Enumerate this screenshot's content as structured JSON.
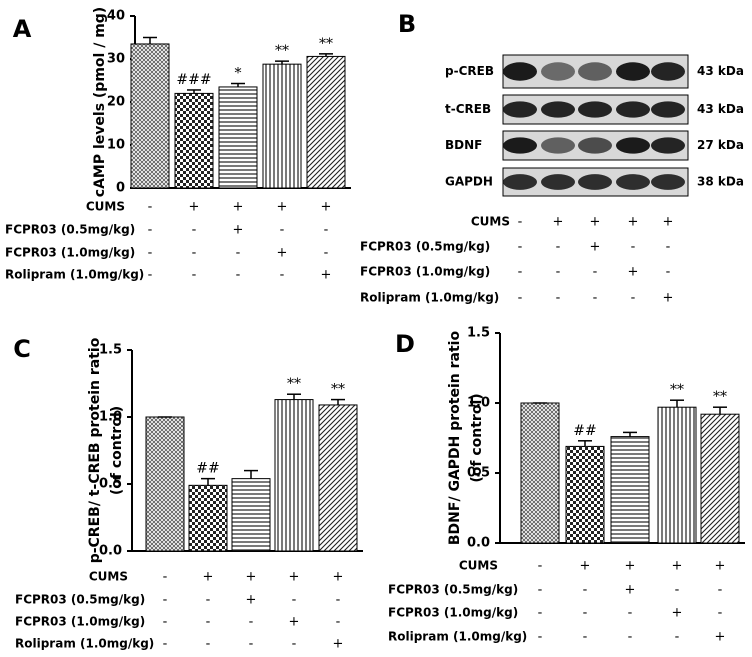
{
  "chart_data": [
    {
      "type": "bar",
      "panel": "A",
      "y_label": [
        "cAMP levels (pmol / mg)"
      ],
      "values": [
        33.5,
        22.0,
        23.5,
        28.8,
        30.6
      ],
      "errors": [
        1.5,
        0.8,
        0.8,
        0.7,
        0.6
      ],
      "annotations": [
        null,
        "###",
        "*",
        "**",
        "**"
      ],
      "ylim": [
        0,
        40
      ],
      "yticks": [
        0,
        10,
        20,
        30,
        40
      ],
      "treatments": [
        {
          "label": "CUMS",
          "signs": [
            "-",
            "+",
            "+",
            "+",
            "+"
          ]
        },
        {
          "label": "FCPR03 (0.5mg/kg)",
          "signs": [
            "-",
            "-",
            "+",
            "-",
            "-"
          ]
        },
        {
          "label": "FCPR03 (1.0mg/kg)",
          "signs": [
            "-",
            "-",
            "-",
            "+",
            "-"
          ]
        },
        {
          "label": "Rolipram (1.0mg/kg)",
          "signs": [
            "-",
            "-",
            "-",
            "-",
            "+"
          ]
        }
      ]
    },
    {
      "type": "blot",
      "panel": "B",
      "rows": [
        {
          "label": "p-CREB",
          "size": "43 kDa"
        },
        {
          "label": "t-CREB",
          "size": "43 kDa"
        },
        {
          "label": "BDNF",
          "size": "27 kDa"
        },
        {
          "label": "GAPDH",
          "size": "38 kDa"
        }
      ],
      "treatments": [
        {
          "label": "CUMS",
          "signs": [
            "-",
            "+",
            "+",
            "+",
            "+"
          ]
        },
        {
          "label": "FCPR03 (0.5mg/kg)",
          "signs": [
            "-",
            "-",
            "+",
            "-",
            "-"
          ]
        },
        {
          "label": "FCPR03 (1.0mg/kg)",
          "signs": [
            "-",
            "-",
            "-",
            "+",
            "-"
          ]
        },
        {
          "label": "Rolipram (1.0mg/kg)",
          "signs": [
            "-",
            "-",
            "-",
            "-",
            "+"
          ]
        }
      ]
    },
    {
      "type": "bar",
      "panel": "C",
      "y_label": [
        "p-CREB/ t-CREB protein ratio",
        "(of control)"
      ],
      "values": [
        1.0,
        0.49,
        0.54,
        1.13,
        1.09
      ],
      "errors": [
        0,
        0.05,
        0.06,
        0.04,
        0.04
      ],
      "annotations": [
        null,
        "##",
        null,
        "**",
        "**"
      ],
      "ylim": [
        0,
        1.5
      ],
      "yticks": [
        {
          "value": 0,
          "label": "0.0"
        },
        0.5,
        {
          "value": 1,
          "label": "1.0"
        },
        1.5
      ],
      "treatments": [
        {
          "label": "CUMS",
          "signs": [
            "-",
            "+",
            "+",
            "+",
            "+"
          ]
        },
        {
          "label": "FCPR03 (0.5mg/kg)",
          "signs": [
            "-",
            "-",
            "+",
            "-",
            "-"
          ]
        },
        {
          "label": "FCPR03 (1.0mg/kg)",
          "signs": [
            "-",
            "-",
            "-",
            "+",
            "-"
          ]
        },
        {
          "label": "Rolipram (1.0mg/kg)",
          "signs": [
            "-",
            "-",
            "-",
            "-",
            "+"
          ]
        }
      ]
    },
    {
      "type": "bar",
      "panel": "D",
      "y_label": [
        "BDNF/ GAPDH protein ratio",
        "(of control)"
      ],
      "values": [
        1.0,
        0.69,
        0.76,
        0.97,
        0.92
      ],
      "errors": [
        0,
        0.04,
        0.03,
        0.05,
        0.05
      ],
      "annotations": [
        null,
        "##",
        null,
        "**",
        "**"
      ],
      "ylim": [
        0,
        1.5
      ],
      "yticks": [
        {
          "value": 0,
          "label": "0.0"
        },
        0.5,
        {
          "value": 1,
          "label": "1.0"
        },
        1.5
      ],
      "treatments": [
        {
          "label": "CUMS",
          "signs": [
            "-",
            "+",
            "+",
            "+",
            "+"
          ]
        },
        {
          "label": "FCPR03 (0.5mg/kg)",
          "signs": [
            "-",
            "-",
            "+",
            "-",
            "-"
          ]
        },
        {
          "label": "FCPR03 (1.0mg/kg)",
          "signs": [
            "-",
            "-",
            "-",
            "+",
            "-"
          ]
        },
        {
          "label": "Rolipram (1.0mg/kg)",
          "signs": [
            "-",
            "-",
            "-",
            "-",
            "+"
          ]
        }
      ]
    }
  ]
}
